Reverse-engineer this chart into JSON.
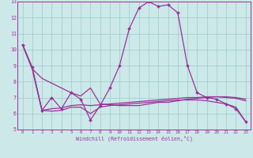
{
  "xlabel": "Windchill (Refroidissement éolien,°C)",
  "xlim": [
    -0.5,
    23.5
  ],
  "ylim": [
    5,
    13
  ],
  "yticks": [
    5,
    6,
    7,
    8,
    9,
    10,
    11,
    12,
    13
  ],
  "xticks": [
    0,
    1,
    2,
    3,
    4,
    5,
    6,
    7,
    8,
    9,
    10,
    11,
    12,
    13,
    14,
    15,
    16,
    17,
    18,
    19,
    20,
    21,
    22,
    23
  ],
  "background_color": "#cce8e8",
  "grid_color": "#99cccc",
  "line_color": "#993399",
  "series": {
    "main": [
      10.3,
      8.9,
      6.2,
      7.0,
      6.3,
      7.3,
      6.9,
      5.6,
      6.5,
      7.6,
      9.0,
      11.3,
      12.6,
      13.0,
      12.7,
      12.8,
      12.3,
      9.0,
      7.3,
      7.0,
      6.9,
      6.6,
      6.3,
      5.5
    ],
    "line1": [
      10.3,
      8.8,
      8.2,
      7.9,
      7.6,
      7.3,
      7.1,
      7.6,
      6.6,
      6.55,
      6.5,
      6.5,
      6.5,
      6.6,
      6.7,
      6.7,
      6.8,
      6.9,
      6.95,
      7.0,
      7.05,
      7.05,
      7.0,
      6.9
    ],
    "line2": [
      10.3,
      8.8,
      6.2,
      6.3,
      6.35,
      6.5,
      6.55,
      6.5,
      6.55,
      6.6,
      6.65,
      6.7,
      6.75,
      6.8,
      6.85,
      6.9,
      6.95,
      7.0,
      7.0,
      7.05,
      7.05,
      7.0,
      6.95,
      6.8
    ],
    "line3": [
      10.3,
      8.8,
      6.2,
      6.15,
      6.2,
      6.4,
      6.4,
      6.0,
      6.4,
      6.5,
      6.55,
      6.6,
      6.65,
      6.7,
      6.75,
      6.8,
      6.85,
      6.85,
      6.85,
      6.8,
      6.7,
      6.6,
      6.4,
      5.5
    ]
  }
}
